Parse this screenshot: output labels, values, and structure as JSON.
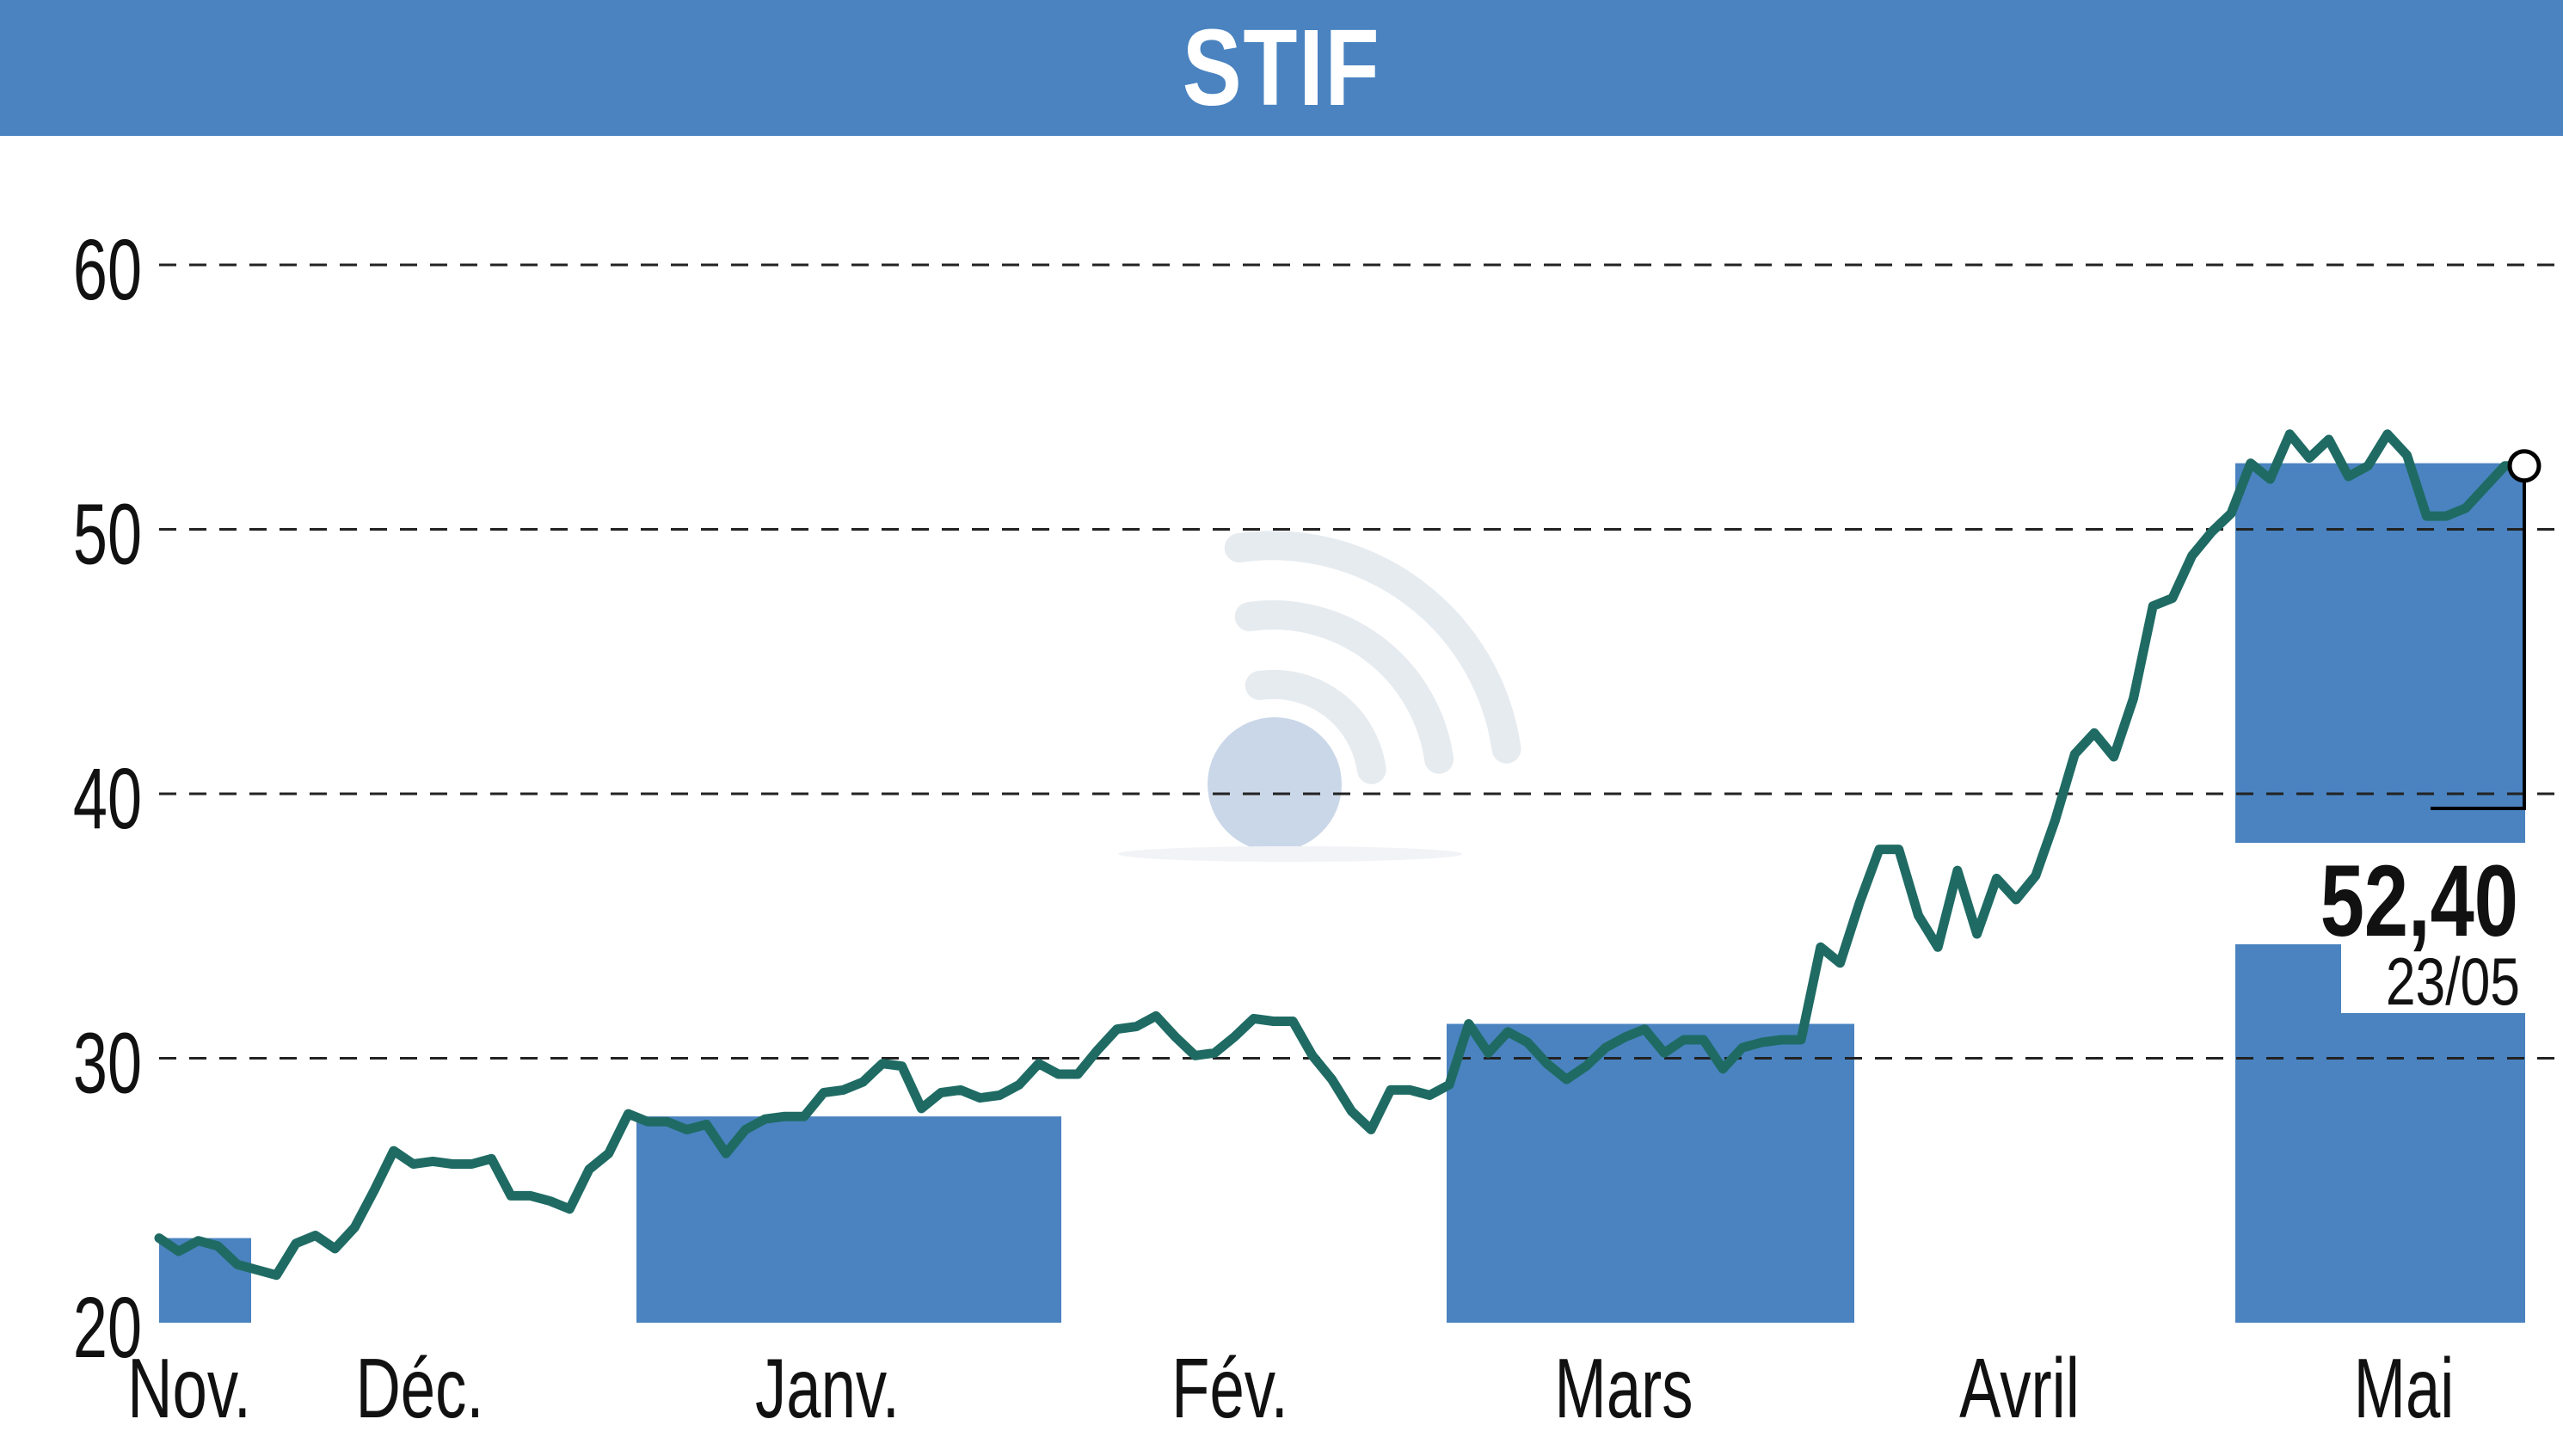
{
  "title": "STIF",
  "colors": {
    "bar": "#4a83c0",
    "line": "#1f6b64",
    "grid": "#222222",
    "text": "#111111",
    "watermark": "#9fb8d6"
  },
  "chart_data": {
    "type": "line",
    "title": "STIF",
    "xlabel": "",
    "ylabel": "",
    "ylim": [
      20,
      62
    ],
    "yticks": [
      20,
      30,
      40,
      50,
      60
    ],
    "grid": true,
    "months": [
      "Nov.",
      "Déc.",
      "Janv.",
      "Fév.",
      "Mars",
      "Avril",
      "Mai"
    ],
    "shaded_months": [
      "Nov.",
      "Janv.",
      "Mars",
      "Mai"
    ],
    "last_value": "52,40",
    "last_date": "23/05",
    "series": [
      {
        "values": [
          23.2,
          22.7,
          23.1,
          22.9,
          22.2,
          22.0,
          21.8,
          23.0,
          23.3,
          22.8,
          23.6,
          25.0,
          26.5,
          26.0,
          26.1,
          26.0,
          26.0,
          26.2,
          24.8,
          24.8,
          24.6,
          24.3,
          25.8,
          26.4,
          27.9,
          27.6,
          27.6,
          27.3,
          27.5,
          26.4,
          27.3,
          27.7,
          27.8,
          27.8,
          28.7,
          28.8,
          29.1,
          29.8,
          29.7,
          28.1,
          28.7,
          28.8,
          28.5,
          28.6,
          29.0,
          29.8,
          29.4,
          29.4,
          30.3,
          31.1,
          31.2,
          31.6,
          30.8,
          30.1,
          30.2,
          30.8,
          31.5,
          31.4,
          31.4,
          30.1,
          29.2,
          28.0,
          27.3,
          28.8,
          28.8,
          28.6,
          29.0,
          31.3,
          30.2,
          31.0,
          30.6,
          29.8,
          29.2,
          29.7,
          30.4,
          30.8,
          31.1,
          30.2,
          30.7,
          30.7,
          29.6,
          30.4,
          30.6,
          30.7,
          30.7,
          34.2,
          33.6,
          35.9,
          37.9,
          37.9,
          35.4,
          34.2,
          37.1,
          34.7,
          36.8,
          36.0,
          36.9,
          39.0,
          41.5,
          42.3,
          41.4,
          43.6,
          47.1,
          47.4,
          49.0,
          49.9,
          50.6,
          52.5,
          51.9,
          53.6,
          52.7,
          53.4,
          52.0,
          52.4,
          53.6,
          52.8,
          50.5,
          50.5,
          50.8,
          51.6,
          52.4,
          52.4
        ]
      }
    ]
  }
}
